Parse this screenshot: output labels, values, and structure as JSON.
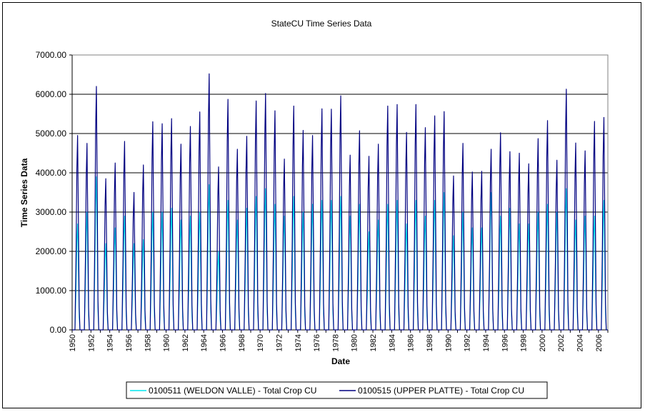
{
  "chart_data": {
    "type": "line",
    "title": "StateCU Time Series Data",
    "xlabel": "Date",
    "ylabel": "Time Series Data",
    "ylim": [
      0,
      7000
    ],
    "xlim": [
      1950,
      2007
    ],
    "grid": true,
    "legend_position": "bottom",
    "y_ticks": [
      "0.00",
      "1000.00",
      "2000.00",
      "3000.00",
      "4000.00",
      "5000.00",
      "6000.00",
      "7000.00"
    ],
    "x_ticks": [
      "1950",
      "1952",
      "1954",
      "1956",
      "1958",
      "1960",
      "1962",
      "1964",
      "1966",
      "1968",
      "1970",
      "1972",
      "1974",
      "1976",
      "1978",
      "1980",
      "1982",
      "1984",
      "1986",
      "1988",
      "1990",
      "1992",
      "1994",
      "1996",
      "1998",
      "2000",
      "2002",
      "2004",
      "2006"
    ],
    "x": [
      1950,
      1951,
      1952,
      1953,
      1954,
      1955,
      1956,
      1957,
      1958,
      1959,
      1960,
      1961,
      1962,
      1963,
      1964,
      1965,
      1966,
      1967,
      1968,
      1969,
      1970,
      1971,
      1972,
      1973,
      1974,
      1975,
      1976,
      1977,
      1978,
      1979,
      1980,
      1981,
      1982,
      1983,
      1984,
      1985,
      1986,
      1987,
      1988,
      1989,
      1990,
      1991,
      1992,
      1993,
      1994,
      1995,
      1996,
      1997,
      1998,
      1999,
      2000,
      2001,
      2002,
      2003,
      2004,
      2005,
      2006
    ],
    "series": [
      {
        "name": "0100511 (WELDON VALLE) - Total Crop CU",
        "color": "#00e5ee",
        "values": [
          2700,
          3000,
          3900,
          2200,
          2600,
          2900,
          2200,
          2300,
          3000,
          3000,
          3100,
          2800,
          2900,
          3000,
          3700,
          2000,
          3300,
          2800,
          3100,
          3400,
          3600,
          3200,
          2900,
          3400,
          3000,
          3200,
          3300,
          3300,
          3400,
          2900,
          3200,
          2500,
          2800,
          3200,
          3300,
          2700,
          3300,
          2900,
          3300,
          3500,
          2400,
          3000,
          2600,
          2600,
          3500,
          2900,
          3100,
          2700,
          2700,
          3000,
          3200,
          3000,
          3600,
          2800,
          2900,
          2900,
          3300
        ]
      },
      {
        "name": "0100515 (UPPER PLATTE) - Total Crop CU",
        "color": "#000080",
        "values": [
          4950,
          4750,
          6200,
          3850,
          4250,
          4800,
          3500,
          4200,
          5300,
          5250,
          5380,
          4730,
          5180,
          5550,
          6520,
          4150,
          5870,
          4600,
          4930,
          5830,
          6020,
          5580,
          4350,
          5700,
          5080,
          4950,
          5630,
          5620,
          5960,
          4450,
          5070,
          4420,
          4730,
          5700,
          5740,
          5030,
          5740,
          5150,
          5450,
          5560,
          3920,
          4750,
          4020,
          4040,
          4600,
          5020,
          4540,
          4500,
          4230,
          4870,
          5330,
          4320,
          6130,
          4760,
          4560,
          5310,
          5410
        ]
      }
    ]
  }
}
